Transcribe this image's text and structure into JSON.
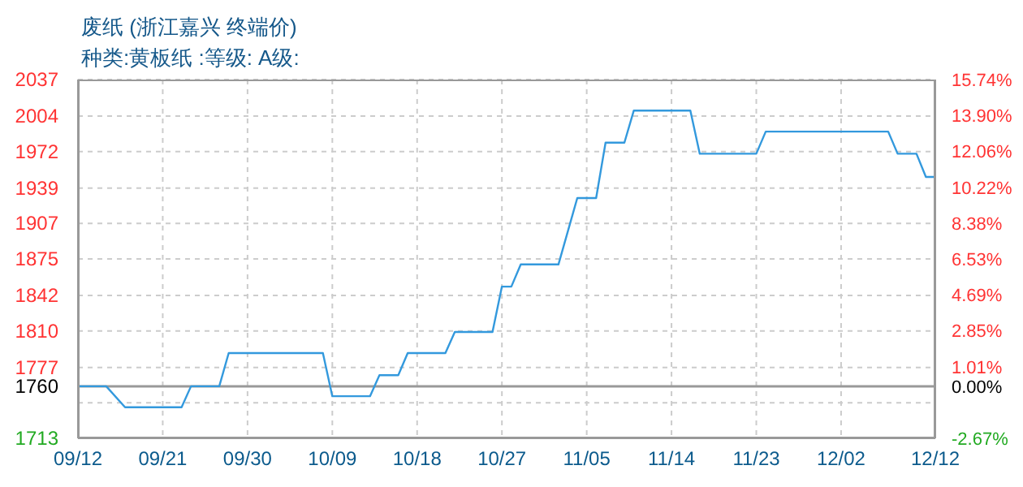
{
  "chart_data": {
    "type": "line",
    "title": "废纸 (浙江嘉兴 终端价)",
    "subtitle": "种类:黄板纸 :等级: A级:",
    "x": [
      "--09-12",
      "--09-15",
      "--09-17",
      "--09-23",
      "--09-24",
      "--09-27",
      "--09-28",
      "--10-08",
      "--10-09",
      "--10-13",
      "--10-14",
      "--10-16",
      "--10-17",
      "--10-21",
      "--10-22",
      "--10-26",
      "--10-27",
      "--10-28",
      "--10-29",
      "--11-02",
      "--11-04",
      "--11-06",
      "--11-07",
      "--11-09",
      "--11-10",
      "--11-16",
      "--11-17",
      "--11-23",
      "--11-24",
      "--12-07",
      "--12-08",
      "--12-10",
      "--12-11",
      "--12-12"
    ],
    "series": [
      {
        "color": "#3399dd",
        "values": [
          1760,
          1760,
          1741,
          1741,
          1760,
          1760,
          1790,
          1790,
          1751,
          1751,
          1770,
          1770,
          1790,
          1790,
          1809,
          1809,
          1850,
          1850,
          1870,
          1870,
          1930,
          1930,
          1980,
          1980,
          2009,
          2009,
          1970,
          1970,
          1990,
          1990,
          1970,
          1970,
          1949,
          1949
        ]
      }
    ],
    "xlim": [
      "--09-12",
      "--12-12"
    ],
    "xticks": [
      {
        "value": "--09-12",
        "label": "09/12"
      },
      {
        "value": "--09-21",
        "label": "09/21"
      },
      {
        "value": "--09-30",
        "label": "09/30"
      },
      {
        "value": "--10-09",
        "label": "10/09"
      },
      {
        "value": "--10-18",
        "label": "10/18"
      },
      {
        "value": "--10-27",
        "label": "10/27"
      },
      {
        "value": "--11-05",
        "label": "11/05"
      },
      {
        "value": "--11-14",
        "label": "11/14"
      },
      {
        "value": "--11-23",
        "label": "11/23"
      },
      {
        "value": "--12-02",
        "label": "12/02"
      },
      {
        "value": "--12-12",
        "label": "12/12"
      }
    ],
    "ylim": [
      1713,
      2037
    ],
    "yticks": [
      1713,
      {
        "value": 1745,
        "label": null
      },
      1760,
      1777,
      1810,
      1842,
      1875,
      1907,
      1939,
      1972,
      2004,
      2037
    ],
    "y2lim": [
      -2.67,
      15.74
    ],
    "y2ticks": [
      {
        "value": -2.67,
        "label": "-2.67%"
      },
      {
        "value": -0.88,
        "label": null
      },
      {
        "value": 0,
        "label": "0.00%"
      },
      {
        "value": 1.01,
        "label": "1.01%"
      },
      {
        "value": 2.85,
        "label": "2.85%"
      },
      {
        "value": 4.69,
        "label": "4.69%"
      },
      {
        "value": 6.53,
        "label": "6.53%"
      },
      {
        "value": 8.38,
        "label": "8.38%"
      },
      {
        "value": 10.22,
        "label": "10.22%"
      },
      {
        "value": 12.06,
        "label": "12.06%"
      },
      {
        "value": 13.9,
        "label": "13.90%"
      },
      {
        "value": 15.74,
        "label": "15.74%"
      }
    ],
    "ref_lines": [
      {
        "axis": "y",
        "value": 1760,
        "color": "#999999"
      }
    ],
    "grid": true,
    "marker": "none",
    "line_style": "solid"
  }
}
